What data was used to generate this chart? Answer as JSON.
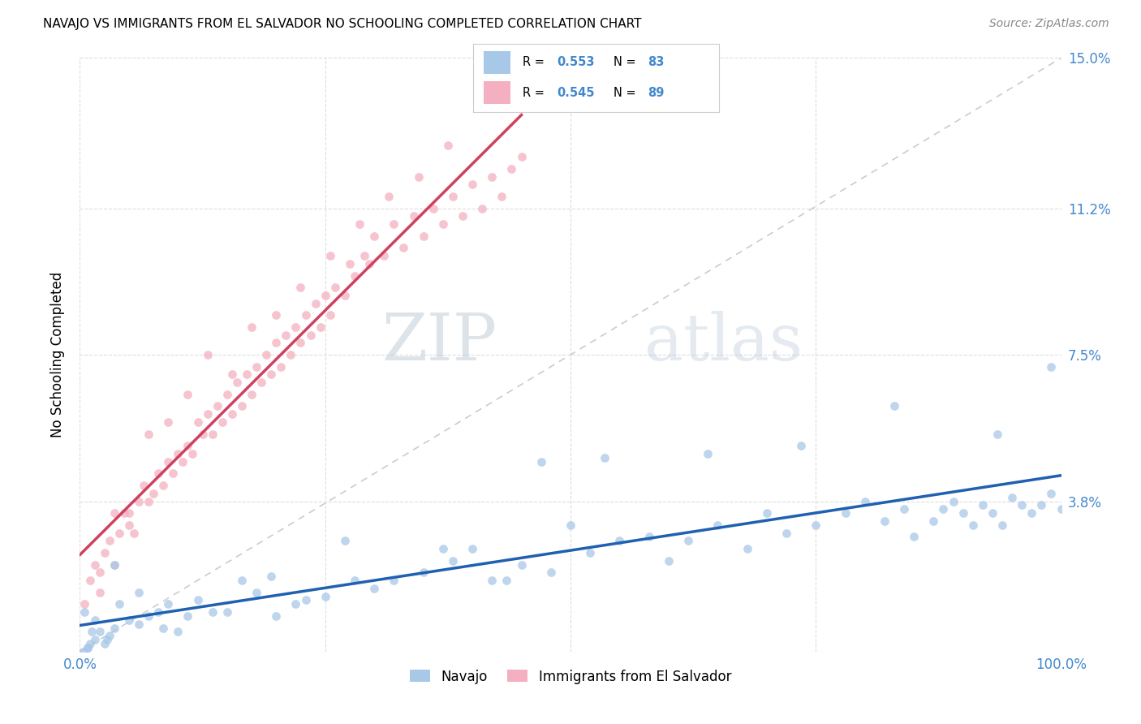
{
  "title": "NAVAJO VS IMMIGRANTS FROM EL SALVADOR NO SCHOOLING COMPLETED CORRELATION CHART",
  "source": "Source: ZipAtlas.com",
  "ylabel": "No Schooling Completed",
  "ytick_values": [
    0.0,
    3.8,
    7.5,
    11.2,
    15.0
  ],
  "ytick_labels": [
    "",
    "3.8%",
    "7.5%",
    "11.2%",
    "15.0%"
  ],
  "xtick_labels": [
    "0.0%",
    "",
    "",
    "",
    "100.0%"
  ],
  "xlim": [
    0.0,
    100.0
  ],
  "ylim": [
    0.0,
    15.0
  ],
  "navajo_R": "0.553",
  "navajo_N": "83",
  "salvador_R": "0.545",
  "salvador_N": "89",
  "navajo_color": "#a8c8e8",
  "salvador_color": "#f4b0c0",
  "navajo_line_color": "#2060b0",
  "salvador_line_color": "#d04060",
  "diagonal_color": "#cccccc",
  "tick_color": "#4488cc",
  "navajo_x": [
    1.5,
    2.0,
    3.0,
    1.0,
    0.5,
    2.5,
    4.0,
    3.5,
    1.2,
    2.8,
    5.0,
    6.0,
    7.0,
    8.0,
    9.0,
    10.0,
    12.0,
    15.0,
    18.0,
    20.0,
    22.0,
    25.0,
    28.0,
    30.0,
    35.0,
    38.0,
    40.0,
    42.0,
    45.0,
    48.0,
    50.0,
    52.0,
    55.0,
    58.0,
    60.0,
    62.0,
    65.0,
    68.0,
    70.0,
    72.0,
    75.0,
    78.0,
    80.0,
    82.0,
    84.0,
    85.0,
    87.0,
    88.0,
    89.0,
    90.0,
    91.0,
    92.0,
    93.0,
    94.0,
    95.0,
    96.0,
    97.0,
    98.0,
    99.0,
    100.0,
    0.8,
    1.5,
    3.5,
    6.0,
    8.5,
    11.0,
    13.5,
    16.5,
    19.5,
    23.0,
    27.0,
    32.0,
    37.0,
    43.5,
    47.0,
    53.5,
    64.0,
    73.5,
    83.0,
    93.5,
    99.0,
    0.3,
    0.8
  ],
  "navajo_y": [
    0.3,
    0.5,
    0.4,
    0.2,
    1.0,
    0.2,
    1.2,
    0.6,
    0.5,
    0.3,
    0.8,
    0.7,
    0.9,
    1.0,
    1.2,
    0.5,
    1.3,
    1.0,
    1.5,
    0.9,
    1.2,
    1.4,
    1.8,
    1.6,
    2.0,
    2.3,
    2.6,
    1.8,
    2.2,
    2.0,
    3.2,
    2.5,
    2.8,
    2.9,
    2.3,
    2.8,
    3.2,
    2.6,
    3.5,
    3.0,
    3.2,
    3.5,
    3.8,
    3.3,
    3.6,
    2.9,
    3.3,
    3.6,
    3.8,
    3.5,
    3.2,
    3.7,
    3.5,
    3.2,
    3.9,
    3.7,
    3.5,
    3.7,
    4.0,
    3.6,
    0.1,
    0.8,
    2.2,
    1.5,
    0.6,
    0.9,
    1.0,
    1.8,
    1.9,
    1.3,
    2.8,
    1.8,
    2.6,
    1.8,
    4.8,
    4.9,
    5.0,
    5.2,
    6.2,
    5.5,
    7.2,
    0.0,
    0.1
  ],
  "salvador_x": [
    0.5,
    1.0,
    1.5,
    2.0,
    2.5,
    3.0,
    3.5,
    4.0,
    4.5,
    5.0,
    5.5,
    6.0,
    6.5,
    7.0,
    7.5,
    8.0,
    8.5,
    9.0,
    9.5,
    10.0,
    10.5,
    11.0,
    11.5,
    12.0,
    12.5,
    13.0,
    13.5,
    14.0,
    14.5,
    15.0,
    15.5,
    16.0,
    16.5,
    17.0,
    17.5,
    18.0,
    18.5,
    19.0,
    19.5,
    20.0,
    20.5,
    21.0,
    21.5,
    22.0,
    22.5,
    23.0,
    23.5,
    24.0,
    24.5,
    25.0,
    25.5,
    26.0,
    27.0,
    27.5,
    28.0,
    29.0,
    29.5,
    30.0,
    31.0,
    32.0,
    33.0,
    34.0,
    35.0,
    36.0,
    37.0,
    38.0,
    39.0,
    40.0,
    41.0,
    42.0,
    43.0,
    44.0,
    45.0,
    2.0,
    3.5,
    5.0,
    7.0,
    9.0,
    11.0,
    13.0,
    15.5,
    17.5,
    20.0,
    22.5,
    25.5,
    28.5,
    31.5,
    34.5,
    37.5
  ],
  "salvador_y": [
    1.2,
    1.8,
    2.2,
    2.0,
    2.5,
    2.8,
    2.2,
    3.0,
    3.5,
    3.2,
    3.0,
    3.8,
    4.2,
    3.8,
    4.0,
    4.5,
    4.2,
    4.8,
    4.5,
    5.0,
    4.8,
    5.2,
    5.0,
    5.8,
    5.5,
    6.0,
    5.5,
    6.2,
    5.8,
    6.5,
    6.0,
    6.8,
    6.2,
    7.0,
    6.5,
    7.2,
    6.8,
    7.5,
    7.0,
    7.8,
    7.2,
    8.0,
    7.5,
    8.2,
    7.8,
    8.5,
    8.0,
    8.8,
    8.2,
    9.0,
    8.5,
    9.2,
    9.0,
    9.8,
    9.5,
    10.0,
    9.8,
    10.5,
    10.0,
    10.8,
    10.2,
    11.0,
    10.5,
    11.2,
    10.8,
    11.5,
    11.0,
    11.8,
    11.2,
    12.0,
    11.5,
    12.2,
    12.5,
    1.5,
    3.5,
    3.5,
    5.5,
    5.8,
    6.5,
    7.5,
    7.0,
    8.2,
    8.5,
    9.2,
    10.0,
    10.8,
    11.5,
    12.0,
    12.8
  ]
}
